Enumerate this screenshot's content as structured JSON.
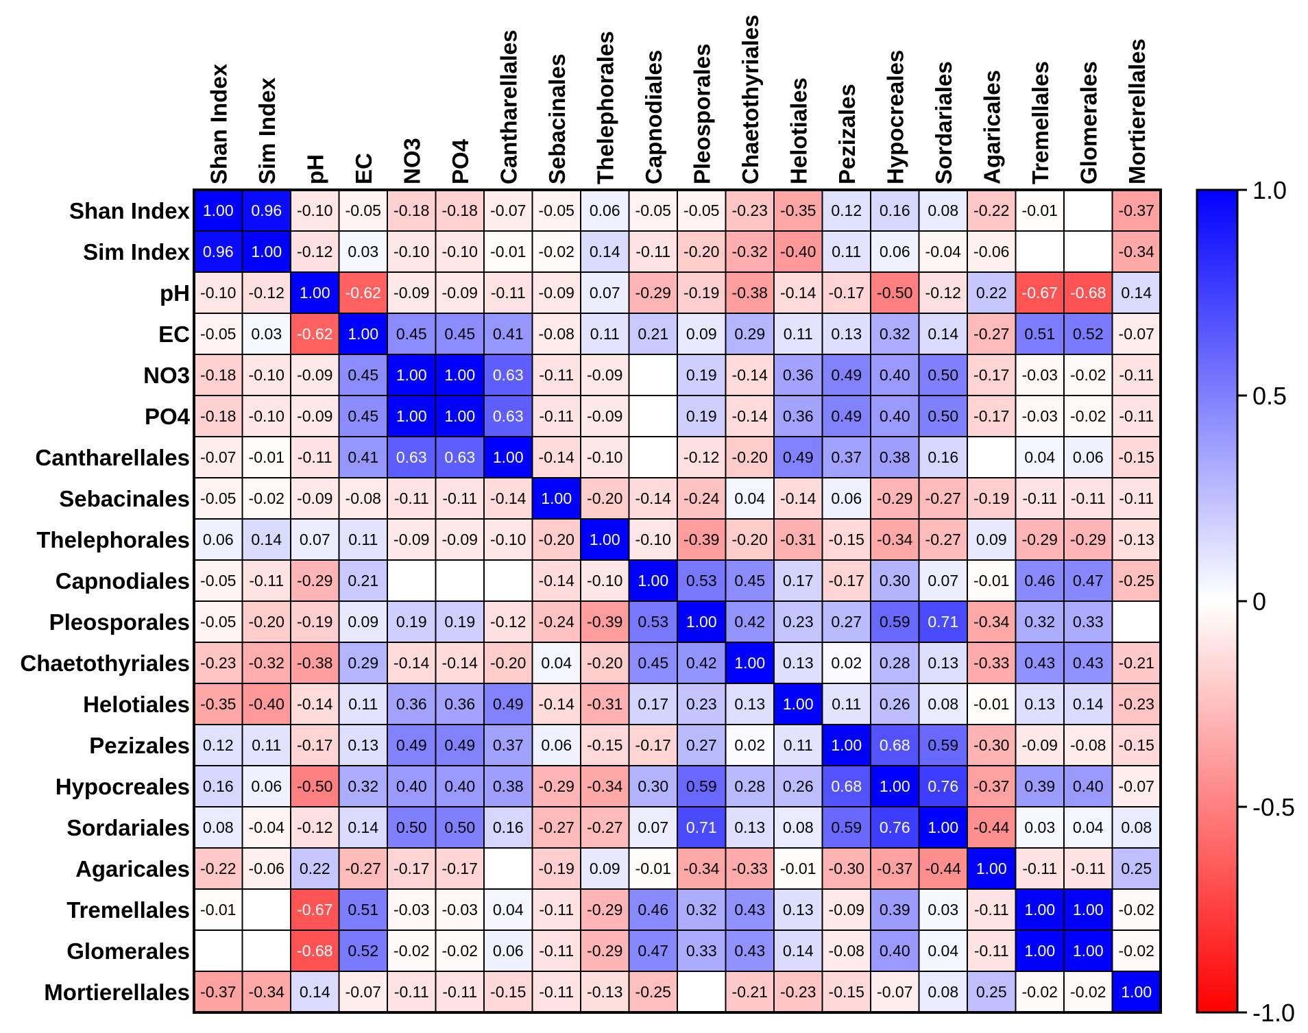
{
  "chart_data": {
    "type": "heatmap",
    "title": "",
    "variables": [
      "Shan Index",
      "Sim Index",
      "pH",
      "EC",
      "NO3",
      "PO4",
      "Cantharellales",
      "Sebacinales",
      "Thelephorales",
      "Capnodiales",
      "Pleosporales",
      "Chaetothyriales",
      "Helotiales",
      "Pezizales",
      "Hypocreales",
      "Sordariales",
      "Agaricales",
      "Tremellales",
      "Glomerales",
      "Mortierellales"
    ],
    "matrix": [
      [
        1.0,
        0.96,
        -0.1,
        -0.05,
        -0.18,
        -0.18,
        -0.07,
        -0.05,
        0.06,
        -0.05,
        -0.05,
        -0.23,
        -0.35,
        0.12,
        0.16,
        0.08,
        -0.22,
        -0.01,
        null,
        -0.37
      ],
      [
        0.96,
        1.0,
        -0.12,
        0.03,
        -0.1,
        -0.1,
        -0.01,
        -0.02,
        0.14,
        -0.11,
        -0.2,
        -0.32,
        -0.4,
        0.11,
        0.06,
        -0.04,
        -0.06,
        null,
        null,
        -0.34
      ],
      [
        -0.1,
        -0.12,
        1.0,
        -0.62,
        -0.09,
        -0.09,
        -0.11,
        -0.09,
        0.07,
        -0.29,
        -0.19,
        -0.38,
        -0.14,
        -0.17,
        -0.5,
        -0.12,
        0.22,
        -0.67,
        -0.68,
        0.14
      ],
      [
        -0.05,
        0.03,
        -0.62,
        1.0,
        0.45,
        0.45,
        0.41,
        -0.08,
        0.11,
        0.21,
        0.09,
        0.29,
        0.11,
        0.13,
        0.32,
        0.14,
        -0.27,
        0.51,
        0.52,
        -0.07
      ],
      [
        -0.18,
        -0.1,
        -0.09,
        0.45,
        1.0,
        1.0,
        0.63,
        -0.11,
        -0.09,
        null,
        0.19,
        -0.14,
        0.36,
        0.49,
        0.4,
        0.5,
        -0.17,
        -0.03,
        -0.02,
        -0.11
      ],
      [
        -0.18,
        -0.1,
        -0.09,
        0.45,
        1.0,
        1.0,
        0.63,
        -0.11,
        -0.09,
        null,
        0.19,
        -0.14,
        0.36,
        0.49,
        0.4,
        0.5,
        -0.17,
        -0.03,
        -0.02,
        -0.11
      ],
      [
        -0.07,
        -0.01,
        -0.11,
        0.41,
        0.63,
        0.63,
        1.0,
        -0.14,
        -0.1,
        null,
        -0.12,
        -0.2,
        0.49,
        0.37,
        0.38,
        0.16,
        null,
        0.04,
        0.06,
        -0.15
      ],
      [
        -0.05,
        -0.02,
        -0.09,
        -0.08,
        -0.11,
        -0.11,
        -0.14,
        1.0,
        -0.2,
        -0.14,
        -0.24,
        0.04,
        -0.14,
        0.06,
        -0.29,
        -0.27,
        -0.19,
        -0.11,
        -0.11,
        -0.11
      ],
      [
        0.06,
        0.14,
        0.07,
        0.11,
        -0.09,
        -0.09,
        -0.1,
        -0.2,
        1.0,
        -0.1,
        -0.39,
        -0.2,
        -0.31,
        -0.15,
        -0.34,
        -0.27,
        0.09,
        -0.29,
        -0.29,
        -0.13
      ],
      [
        -0.05,
        -0.11,
        -0.29,
        0.21,
        null,
        null,
        null,
        -0.14,
        -0.1,
        1.0,
        0.53,
        0.45,
        0.17,
        -0.17,
        0.3,
        0.07,
        -0.01,
        0.46,
        0.47,
        -0.25
      ],
      [
        -0.05,
        -0.2,
        -0.19,
        0.09,
        0.19,
        0.19,
        -0.12,
        -0.24,
        -0.39,
        0.53,
        1.0,
        0.42,
        0.23,
        0.27,
        0.59,
        0.71,
        -0.34,
        0.32,
        0.33,
        null
      ],
      [
        -0.23,
        -0.32,
        -0.38,
        0.29,
        -0.14,
        -0.14,
        -0.2,
        0.04,
        -0.2,
        0.45,
        0.42,
        1.0,
        0.13,
        0.02,
        0.28,
        0.13,
        -0.33,
        0.43,
        0.43,
        -0.21
      ],
      [
        -0.35,
        -0.4,
        -0.14,
        0.11,
        0.36,
        0.36,
        0.49,
        -0.14,
        -0.31,
        0.17,
        0.23,
        0.13,
        1.0,
        0.11,
        0.26,
        0.08,
        -0.01,
        0.13,
        0.14,
        -0.23
      ],
      [
        0.12,
        0.11,
        -0.17,
        0.13,
        0.49,
        0.49,
        0.37,
        0.06,
        -0.15,
        -0.17,
        0.27,
        0.02,
        0.11,
        1.0,
        0.68,
        0.59,
        -0.3,
        -0.09,
        -0.08,
        -0.15
      ],
      [
        0.16,
        0.06,
        -0.5,
        0.32,
        0.4,
        0.4,
        0.38,
        -0.29,
        -0.34,
        0.3,
        0.59,
        0.28,
        0.26,
        0.68,
        1.0,
        0.76,
        -0.37,
        0.39,
        0.4,
        -0.07
      ],
      [
        0.08,
        -0.04,
        -0.12,
        0.14,
        0.5,
        0.5,
        0.16,
        -0.27,
        -0.27,
        0.07,
        0.71,
        0.13,
        0.08,
        0.59,
        0.76,
        1.0,
        -0.44,
        0.03,
        0.04,
        0.08
      ],
      [
        -0.22,
        -0.06,
        0.22,
        -0.27,
        -0.17,
        -0.17,
        null,
        -0.19,
        0.09,
        -0.01,
        -0.34,
        -0.33,
        -0.01,
        -0.3,
        -0.37,
        -0.44,
        1.0,
        -0.11,
        -0.11,
        0.25
      ],
      [
        -0.01,
        null,
        -0.67,
        0.51,
        -0.03,
        -0.03,
        0.04,
        -0.11,
        -0.29,
        0.46,
        0.32,
        0.43,
        0.13,
        -0.09,
        0.39,
        0.03,
        -0.11,
        1.0,
        1.0,
        -0.02
      ],
      [
        null,
        null,
        -0.68,
        0.52,
        -0.02,
        -0.02,
        0.06,
        -0.11,
        -0.29,
        0.47,
        0.33,
        0.43,
        0.14,
        -0.08,
        0.4,
        0.04,
        -0.11,
        1.0,
        1.0,
        -0.02
      ],
      [
        -0.37,
        -0.34,
        0.14,
        -0.07,
        -0.11,
        -0.11,
        -0.15,
        -0.11,
        -0.13,
        -0.25,
        null,
        -0.21,
        -0.23,
        -0.15,
        -0.07,
        0.08,
        0.25,
        -0.02,
        -0.02,
        1.0
      ]
    ],
    "color_scale": {
      "range": [
        -1.0,
        1.0
      ],
      "ticks": [
        1.0,
        0.5,
        0,
        -0.5,
        -1.0
      ],
      "tick_labels": [
        "1.0",
        "0.5",
        "0",
        "-0.5",
        "-1.0"
      ],
      "colors": {
        "negative": "#ff0000",
        "zero": "#ffffff",
        "positive": "#0000ff"
      }
    },
    "legend": "right"
  }
}
